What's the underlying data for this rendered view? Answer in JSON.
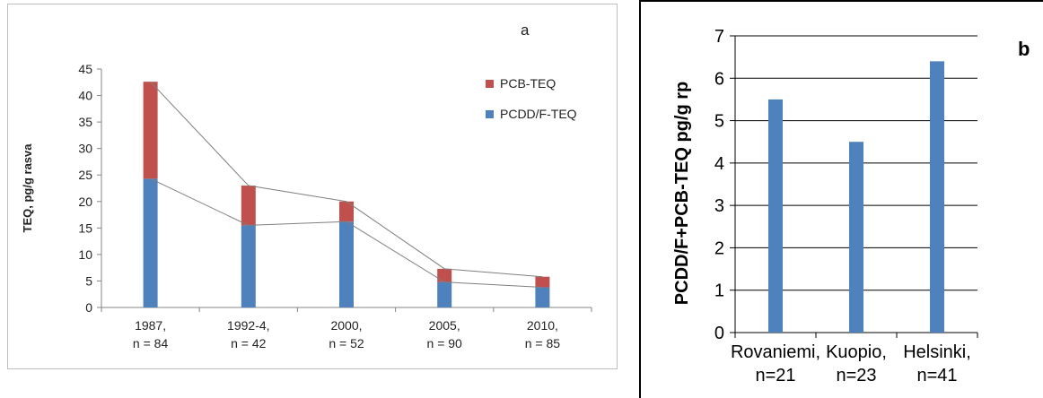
{
  "chart_data": [
    {
      "id": "a",
      "type": "bar",
      "stacked": true,
      "panel_letter": "a",
      "ylabel": "TEQ, pg/g rasva",
      "xlabel": "",
      "ylim": [
        0,
        45
      ],
      "yticks": [
        "0",
        "5",
        "10",
        "15",
        "20",
        "25",
        "30",
        "35",
        "40",
        "45"
      ],
      "grid": false,
      "legend_position": "top-right",
      "categories": [
        [
          "1987,",
          "n = 84"
        ],
        [
          "1992-4,",
          "n = 42"
        ],
        [
          "2000,",
          "n = 52"
        ],
        [
          "2005,",
          "n = 90"
        ],
        [
          "2010,",
          "n = 85"
        ]
      ],
      "series": [
        {
          "name": "PCDD/F-TEQ",
          "color": "#4f81bd",
          "values": [
            24.3,
            15.5,
            16.2,
            4.8,
            3.8
          ]
        },
        {
          "name": "PCB-TEQ",
          "color": "#c0504d",
          "values": [
            18.3,
            7.5,
            3.8,
            2.5,
            2.0
          ]
        }
      ],
      "connector_color": "#7f7f7f"
    },
    {
      "id": "b",
      "type": "bar",
      "panel_letter": "b",
      "ylabel": "PCDD/F+PCB-TEQ pg/g rp",
      "xlabel": "",
      "ylim": [
        0,
        7
      ],
      "yticks": [
        "0",
        "1",
        "2",
        "3",
        "4",
        "5",
        "6",
        "7"
      ],
      "grid": true,
      "categories": [
        [
          "Rovaniemi,",
          "n=21"
        ],
        [
          "Kuopio,",
          "n=23"
        ],
        [
          "Helsinki,",
          "n=41"
        ]
      ],
      "series": [
        {
          "color": "#4f81bd",
          "values": [
            5.5,
            4.5,
            6.4
          ]
        }
      ]
    }
  ]
}
